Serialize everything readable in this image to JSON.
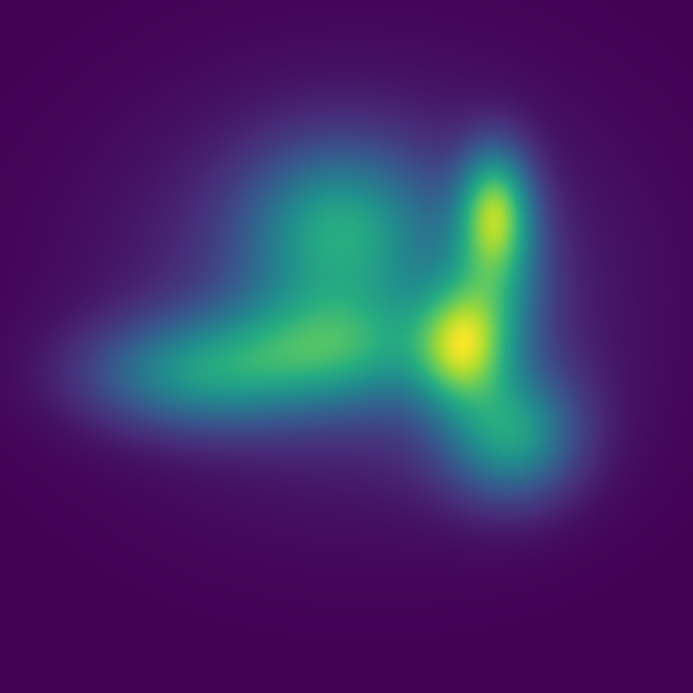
{
  "chart_data": {
    "type": "heatmap",
    "title": "",
    "xlabel": "",
    "ylabel": "",
    "colormap": "viridis",
    "axes_visible": false,
    "colorbar_visible": false,
    "value_range": [
      0,
      1
    ],
    "x_range": [
      0,
      1
    ],
    "y_range": [
      0,
      1
    ],
    "background_color": "#440154",
    "kernels": [
      {
        "name": "peak-upper-right",
        "x": 0.715,
        "y": 0.3,
        "amp": 0.55,
        "sx": 0.035,
        "sy": 0.06
      },
      {
        "name": "peak-mid-right",
        "x": 0.665,
        "y": 0.5,
        "amp": 0.55,
        "sx": 0.045,
        "sy": 0.06
      },
      {
        "name": "ridge-right",
        "x": 0.715,
        "y": 0.4,
        "amp": 0.35,
        "sx": 0.05,
        "sy": 0.09
      },
      {
        "name": "tail-lower-right",
        "x": 0.74,
        "y": 0.63,
        "amp": 0.35,
        "sx": 0.06,
        "sy": 0.06
      },
      {
        "name": "lobe-center-upper",
        "x": 0.49,
        "y": 0.33,
        "amp": 0.42,
        "sx": 0.09,
        "sy": 0.08
      },
      {
        "name": "arm-left",
        "x": 0.28,
        "y": 0.54,
        "amp": 0.4,
        "sx": 0.11,
        "sy": 0.055
      },
      {
        "name": "arm-center",
        "x": 0.48,
        "y": 0.5,
        "amp": 0.42,
        "sx": 0.11,
        "sy": 0.06
      },
      {
        "name": "broad-halo",
        "x": 0.52,
        "y": 0.42,
        "amp": 0.22,
        "sx": 0.22,
        "sy": 0.18
      },
      {
        "name": "lower-right-halo",
        "x": 0.73,
        "y": 0.62,
        "amp": 0.15,
        "sx": 0.09,
        "sy": 0.08
      }
    ]
  }
}
